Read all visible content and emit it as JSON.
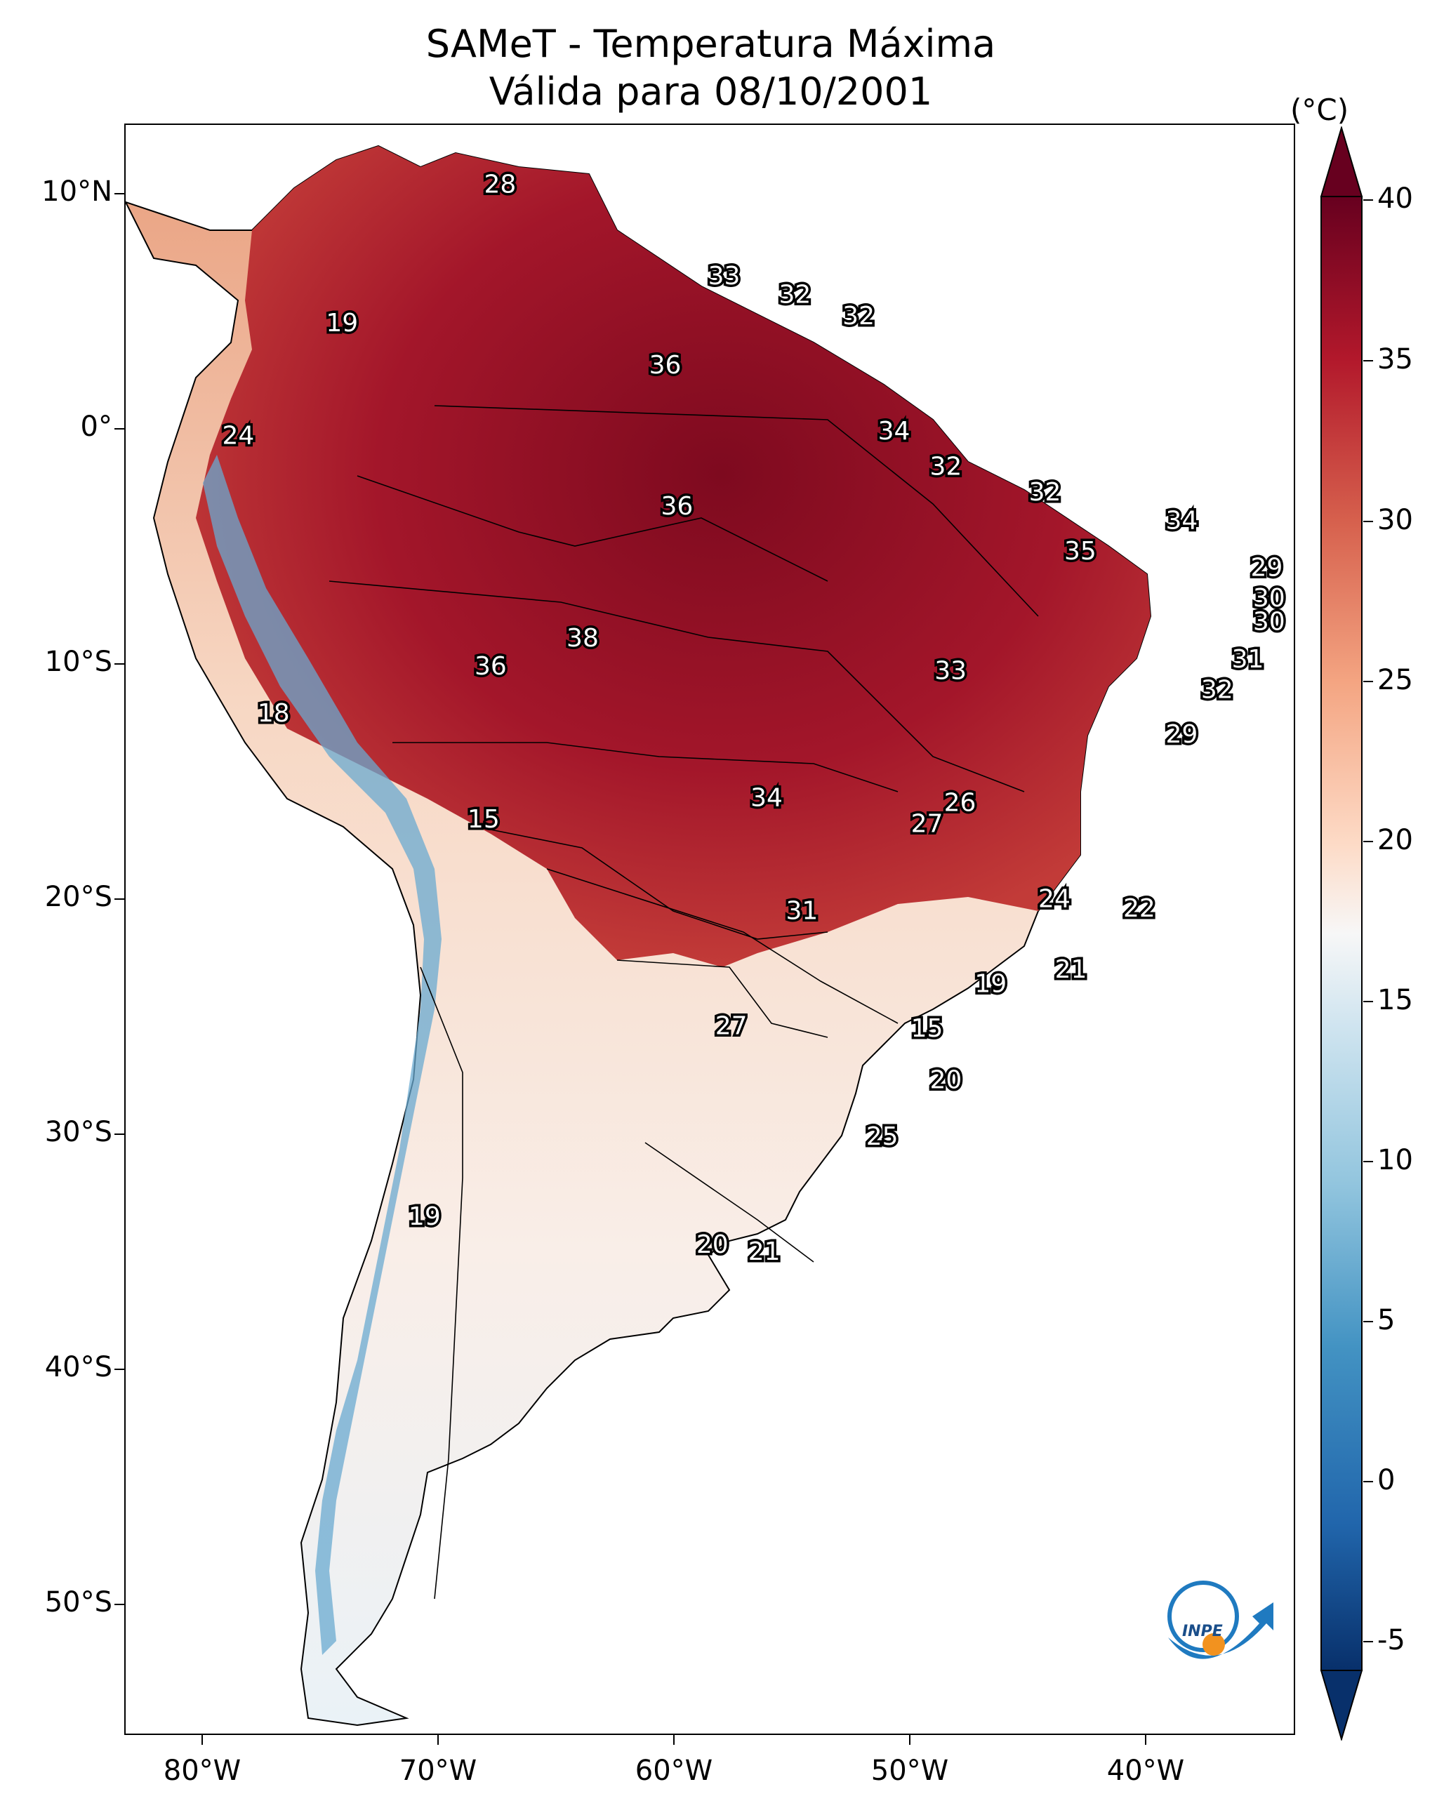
{
  "title_line1": "SAMeT - Temperatura Máxima",
  "title_line2": "Válida para 08/10/2001",
  "colorbar": {
    "unit": "(°C)",
    "ticks": [
      "40",
      "35",
      "30",
      "25",
      "20",
      "15",
      "10",
      "5",
      "0",
      "-5"
    ],
    "range": [
      -5,
      40
    ],
    "colors": [
      "#08306b",
      "#2166ac",
      "#4393c3",
      "#92c5de",
      "#d1e5f0",
      "#f7f7f7",
      "#fddbc7",
      "#f4a582",
      "#d6604d",
      "#b2182b",
      "#67001f"
    ]
  },
  "latitude_labels": [
    "10°N",
    "0°",
    "10°S",
    "20°S",
    "30°S",
    "40°S",
    "50°S"
  ],
  "longitude_labels": [
    "80°W",
    "70°W",
    "60°W",
    "50°W",
    "40°W"
  ],
  "temperature_labels": [
    {
      "value": "28",
      "lon": -67.4,
      "lat": 10.5
    },
    {
      "value": "33",
      "lon": -57.9,
      "lat": 6.6
    },
    {
      "value": "32",
      "lon": -54.9,
      "lat": 5.8
    },
    {
      "value": "32",
      "lon": -52.2,
      "lat": 4.9
    },
    {
      "value": "19",
      "lon": -74.1,
      "lat": 4.6
    },
    {
      "value": "36",
      "lon": -60.4,
      "lat": 2.8
    },
    {
      "value": "34",
      "lon": -50.7,
      "lat": 0.0
    },
    {
      "value": "24",
      "lon": -78.5,
      "lat": -0.2
    },
    {
      "value": "32",
      "lon": -48.5,
      "lat": -1.5
    },
    {
      "value": "32",
      "lon": -44.3,
      "lat": -2.6
    },
    {
      "value": "36",
      "lon": -59.9,
      "lat": -3.2
    },
    {
      "value": "34",
      "lon": -38.5,
      "lat": -3.8
    },
    {
      "value": "35",
      "lon": -42.8,
      "lat": -5.1
    },
    {
      "value": "29",
      "lon": -34.9,
      "lat": -5.8
    },
    {
      "value": "30",
      "lon": -34.8,
      "lat": -7.1
    },
    {
      "value": "30",
      "lon": -34.8,
      "lat": -8.1
    },
    {
      "value": "38",
      "lon": -63.9,
      "lat": -8.8
    },
    {
      "value": "31",
      "lon": -35.7,
      "lat": -9.7
    },
    {
      "value": "36",
      "lon": -67.8,
      "lat": -10.0
    },
    {
      "value": "33",
      "lon": -48.3,
      "lat": -10.2
    },
    {
      "value": "32",
      "lon": -37.0,
      "lat": -11.0
    },
    {
      "value": "18",
      "lon": -77.0,
      "lat": -12.0
    },
    {
      "value": "29",
      "lon": -38.5,
      "lat": -12.9
    },
    {
      "value": "26",
      "lon": -47.9,
      "lat": -15.8
    },
    {
      "value": "34",
      "lon": -56.1,
      "lat": -15.6
    },
    {
      "value": "15",
      "lon": -68.1,
      "lat": -16.5
    },
    {
      "value": "27",
      "lon": -49.3,
      "lat": -16.7
    },
    {
      "value": "24",
      "lon": -43.9,
      "lat": -19.9
    },
    {
      "value": "22",
      "lon": -40.3,
      "lat": -20.3
    },
    {
      "value": "31",
      "lon": -54.6,
      "lat": -20.4
    },
    {
      "value": "21",
      "lon": -43.2,
      "lat": -22.9
    },
    {
      "value": "19",
      "lon": -46.6,
      "lat": -23.5
    },
    {
      "value": "27",
      "lon": -57.6,
      "lat": -25.3
    },
    {
      "value": "15",
      "lon": -49.3,
      "lat": -25.4
    },
    {
      "value": "20",
      "lon": -48.5,
      "lat": -27.6
    },
    {
      "value": "25",
      "lon": -51.2,
      "lat": -30.0
    },
    {
      "value": "19",
      "lon": -70.6,
      "lat": -33.4
    },
    {
      "value": "20",
      "lon": -58.4,
      "lat": -34.6
    },
    {
      "value": "21",
      "lon": -56.2,
      "lat": -34.9
    }
  ]
}
